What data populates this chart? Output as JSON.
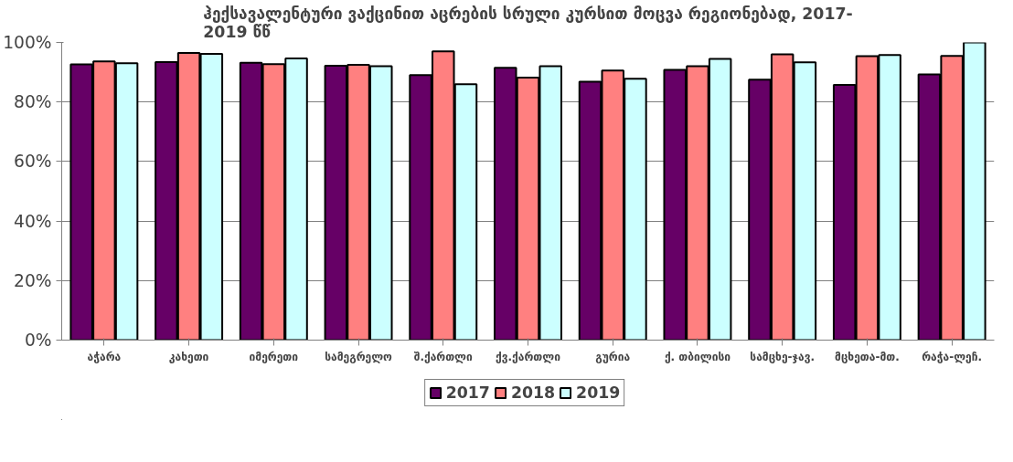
{
  "chart_data": {
    "type": "bar",
    "title": "ჰექსავალენტური ვაქცინით აცრების სრული კურსით მოცვა რეგიონებად, 2017-\n2019 წწ",
    "categories": [
      "აჭარა",
      "კახეთი",
      "იმერეთი",
      "სამეგრელო",
      "შ.ქართლი",
      "ქვ.ქართლი",
      "გურია",
      "ქ. თბილისი",
      "სამცხე-ჯავ.",
      "მცხეთა-მთ.",
      "რაჭა-ლეჩ."
    ],
    "series": [
      {
        "name": "2017",
        "color": "#660066",
        "values": [
          92.6,
          93.4,
          93.2,
          92.2,
          89.0,
          91.5,
          86.8,
          90.8,
          87.5,
          85.7,
          89.3
        ]
      },
      {
        "name": "2018",
        "color": "#ff8080",
        "values": [
          93.6,
          96.5,
          92.7,
          92.5,
          97.0,
          88.2,
          90.6,
          92.0,
          96.0,
          95.4,
          95.5
        ]
      },
      {
        "name": "2019",
        "color": "#ccffff",
        "values": [
          93.0,
          96.2,
          94.6,
          92.0,
          86.0,
          92.0,
          87.8,
          94.5,
          93.3,
          95.8,
          100
        ]
      }
    ],
    "ylim": [
      0,
      100
    ],
    "yticks": [
      {
        "value": 0,
        "label": "0%"
      },
      {
        "value": 20,
        "label": "20%"
      },
      {
        "value": 40,
        "label": "40%"
      },
      {
        "value": 60,
        "label": "60%"
      },
      {
        "value": 80,
        "label": "80%"
      },
      {
        "value": 100,
        "label": "100%"
      }
    ],
    "grid": "y",
    "legend": "bottom"
  }
}
